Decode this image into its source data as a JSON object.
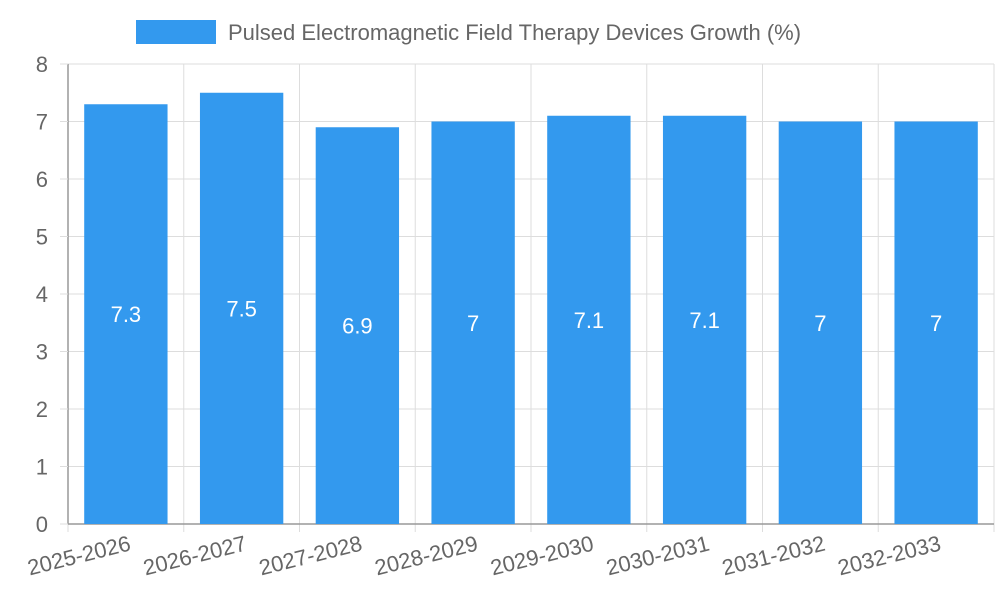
{
  "chart_data": {
    "type": "bar",
    "title": "",
    "xlabel": "",
    "ylabel": "",
    "categories": [
      "2025-2026",
      "2026-2027",
      "2027-2028",
      "2028-2029",
      "2029-2030",
      "2030-2031",
      "2031-2032",
      "2032-2033"
    ],
    "series": [
      {
        "name": "Pulsed Electromagnetic Field Therapy Devices Growth (%)",
        "values": [
          7.3,
          7.5,
          6.9,
          7,
          7.1,
          7.1,
          7,
          7
        ],
        "color": "#3399ee"
      }
    ],
    "data_labels": [
      "7.3",
      "7.5",
      "6.9",
      "7",
      "7.1",
      "7.1",
      "7",
      "7"
    ],
    "ylim": [
      0,
      8
    ],
    "yticks": [
      "0",
      "1",
      "2",
      "3",
      "4",
      "5",
      "6",
      "7",
      "8"
    ],
    "grid": true,
    "legend_position": "top-center",
    "colors": {
      "bar": "#3399ee",
      "grid": "#dddddd",
      "axis": "#999999",
      "text": "#666666",
      "label": "#ffffff"
    }
  }
}
